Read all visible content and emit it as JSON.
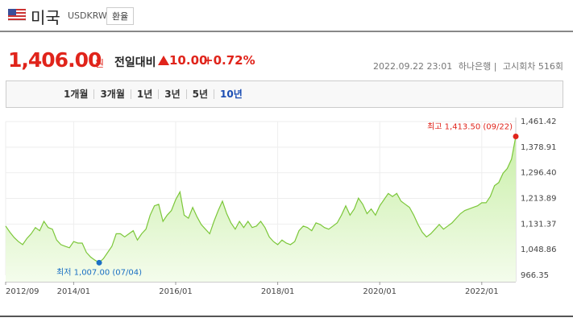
{
  "header": {
    "title": "미국",
    "code": "USDKRW",
    "button": "환율"
  },
  "quote": {
    "price": "1,406.00",
    "unit": "원",
    "change_label": "전일대비",
    "change": "10.00",
    "change_percent": "+0.72%",
    "datetime": "2022.09.22 23:01",
    "bank": "하나은행",
    "round": "고시회차 516회"
  },
  "tabs": {
    "items": [
      "1개월",
      "3개월",
      "1년",
      "3년",
      "5년",
      "10년"
    ],
    "active": 5
  },
  "chart_data": {
    "type": "line",
    "color": "#7cc73a",
    "x": [
      "2012/09",
      "2012/10",
      "2012/11",
      "2012/12",
      "2013/01",
      "2013/02",
      "2013/03",
      "2013/04",
      "2013/05",
      "2013/06",
      "2013/07",
      "2013/08",
      "2013/09",
      "2013/10",
      "2013/11",
      "2013/12",
      "2014/01",
      "2014/02",
      "2014/03",
      "2014/04",
      "2014/05",
      "2014/06",
      "2014/07",
      "2014/08",
      "2014/09",
      "2014/10",
      "2014/11",
      "2014/12",
      "2015/01",
      "2015/02",
      "2015/03",
      "2015/04",
      "2015/05",
      "2015/06",
      "2015/07",
      "2015/08",
      "2015/09",
      "2015/10",
      "2015/11",
      "2015/12",
      "2016/01",
      "2016/02",
      "2016/03",
      "2016/04",
      "2016/05",
      "2016/06",
      "2016/07",
      "2016/08",
      "2016/09",
      "2016/10",
      "2016/11",
      "2016/12",
      "2017/01",
      "2017/02",
      "2017/03",
      "2017/04",
      "2017/05",
      "2017/06",
      "2017/07",
      "2017/08",
      "2017/09",
      "2017/10",
      "2017/11",
      "2017/12",
      "2018/01",
      "2018/02",
      "2018/03",
      "2018/04",
      "2018/05",
      "2018/06",
      "2018/07",
      "2018/08",
      "2018/09",
      "2018/10",
      "2018/11",
      "2018/12",
      "2019/01",
      "2019/02",
      "2019/03",
      "2019/04",
      "2019/05",
      "2019/06",
      "2019/07",
      "2019/08",
      "2019/09",
      "2019/10",
      "2019/11",
      "2019/12",
      "2020/01",
      "2020/02",
      "2020/03",
      "2020/04",
      "2020/05",
      "2020/06",
      "2020/07",
      "2020/08",
      "2020/09",
      "2020/10",
      "2020/11",
      "2020/12",
      "2021/01",
      "2021/02",
      "2021/03",
      "2021/04",
      "2021/05",
      "2021/06",
      "2021/07",
      "2021/08",
      "2021/09",
      "2021/10",
      "2021/11",
      "2021/12",
      "2022/01",
      "2022/02",
      "2022/03",
      "2022/04",
      "2022/05",
      "2022/06",
      "2022/07",
      "2022/08",
      "2022/09"
    ],
    "values": [
      1125,
      1105,
      1088,
      1075,
      1065,
      1085,
      1100,
      1120,
      1110,
      1140,
      1120,
      1115,
      1080,
      1065,
      1060,
      1055,
      1075,
      1070,
      1070,
      1040,
      1025,
      1015,
      1007,
      1020,
      1040,
      1060,
      1100,
      1100,
      1090,
      1100,
      1110,
      1080,
      1100,
      1115,
      1160,
      1190,
      1195,
      1140,
      1160,
      1175,
      1210,
      1235,
      1160,
      1150,
      1185,
      1155,
      1130,
      1115,
      1100,
      1140,
      1175,
      1205,
      1165,
      1135,
      1115,
      1140,
      1120,
      1140,
      1120,
      1125,
      1140,
      1120,
      1090,
      1075,
      1065,
      1080,
      1070,
      1065,
      1075,
      1110,
      1125,
      1120,
      1110,
      1135,
      1130,
      1120,
      1115,
      1125,
      1135,
      1160,
      1190,
      1160,
      1180,
      1215,
      1195,
      1165,
      1180,
      1160,
      1190,
      1210,
      1230,
      1220,
      1230,
      1205,
      1195,
      1185,
      1160,
      1130,
      1105,
      1090,
      1100,
      1115,
      1130,
      1115,
      1125,
      1135,
      1150,
      1165,
      1175,
      1180,
      1185,
      1190,
      1200,
      1200,
      1220,
      1255,
      1265,
      1295,
      1310,
      1340,
      1413.5
    ],
    "xlim": [
      "2012/09",
      "2022/09"
    ],
    "xticks": [
      "2012/09",
      "2014/01",
      "2016/01",
      "2018/01",
      "2020/01",
      "2022/01"
    ],
    "ylim": [
      966.35,
      1461.42
    ],
    "yticks": [
      966.35,
      {
        "value": 1048.86,
        "label": "1,048.86"
      },
      {
        "value": 1131.37,
        "label": "1,131.37"
      },
      {
        "value": 1213.89,
        "label": "1,213.89"
      },
      {
        "value": 1296.4,
        "label": "1,296.40"
      },
      {
        "value": 1378.91,
        "label": "1,378.91"
      },
      {
        "value": 1461.42,
        "label": "1,461.42"
      }
    ],
    "grid": true,
    "annotations": {
      "high": "최고 1,413.50 (09/22)",
      "low": "최저 1,007.00 (07/04)"
    }
  }
}
